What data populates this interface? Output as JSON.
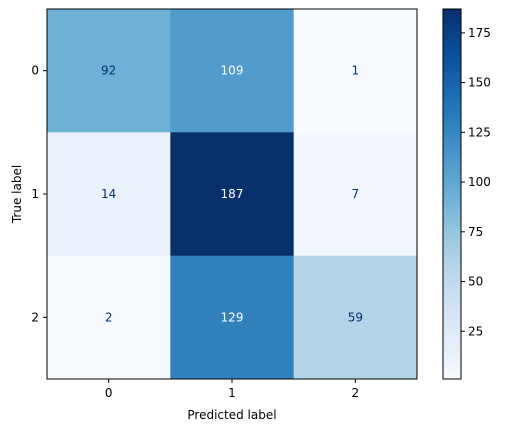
{
  "chart_data": {
    "type": "heatmap",
    "title": "",
    "xlabel": "Predicted label",
    "ylabel": "True label",
    "x_categories": [
      "0",
      "1",
      "2"
    ],
    "y_categories": [
      "0",
      "1",
      "2"
    ],
    "values": [
      [
        92,
        109,
        1
      ],
      [
        14,
        187,
        7
      ],
      [
        2,
        129,
        59
      ]
    ],
    "colormap": "Blues",
    "vmin": 1,
    "vmax": 187,
    "colorbar_ticks": [
      25,
      50,
      75,
      100,
      125,
      150,
      175
    ],
    "grid": false,
    "text_color_dark": "#08306b",
    "text_color_light": "#ffffff"
  }
}
